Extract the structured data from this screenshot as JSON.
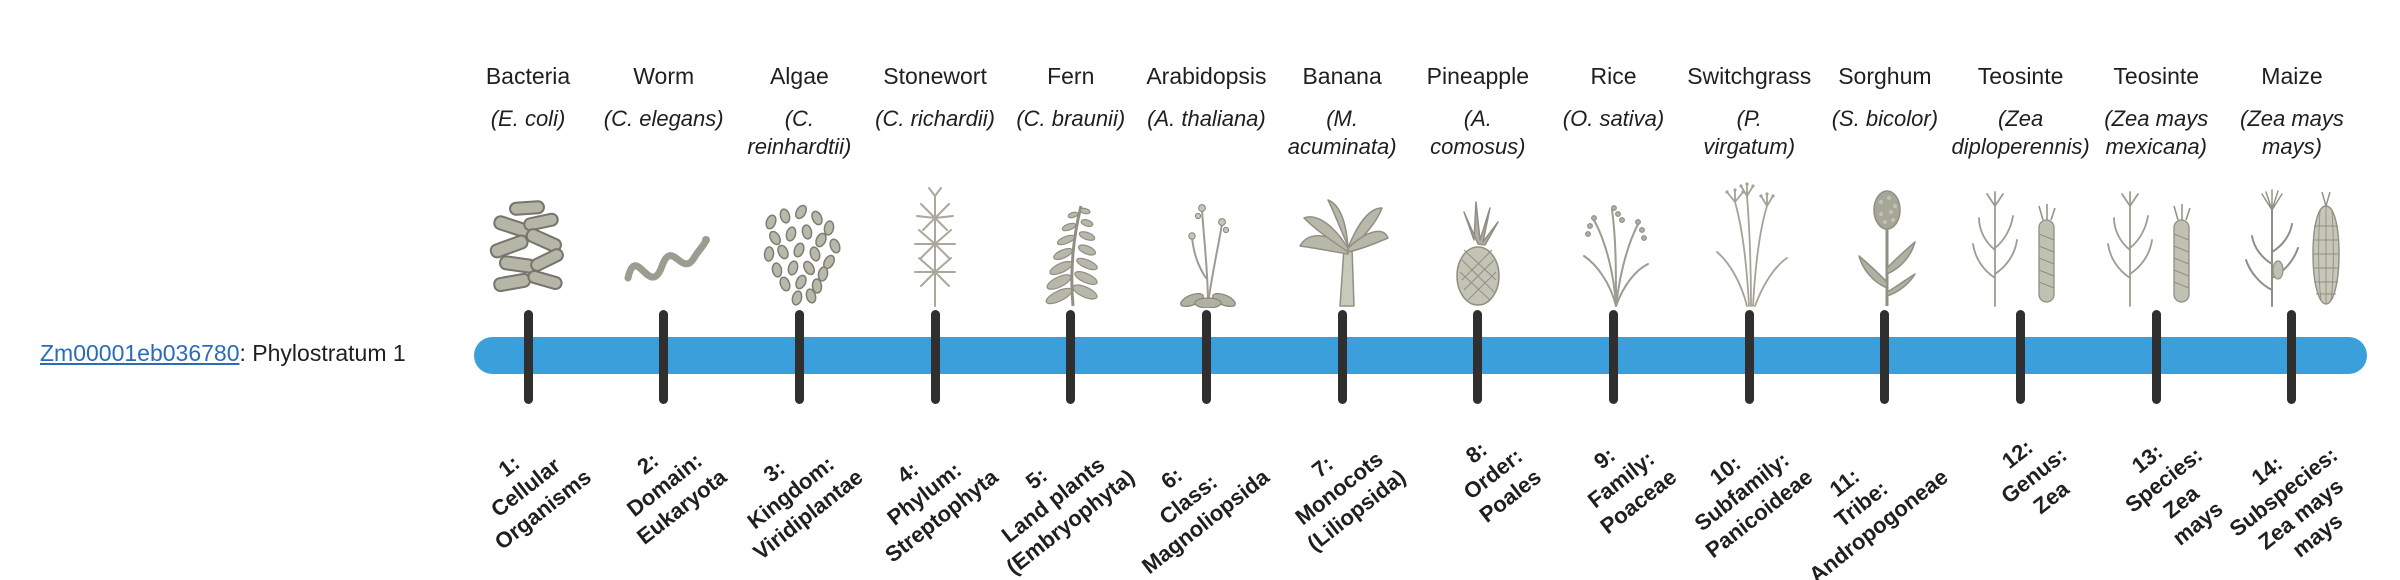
{
  "gene": {
    "id": "Zm00001eb036780",
    "suffix": ": Phylostratum 1"
  },
  "colors": {
    "bar": "#3A9FDB",
    "tick": "#2F2F2F",
    "link": "#2B6CB8",
    "text": "#1F1F1F"
  },
  "columns": [
    {
      "name": "Bacteria",
      "sci_lines": [
        "(E. coli)"
      ],
      "icon": "bacteria-icon",
      "stratum": [
        "1:",
        "Cellular",
        "Organisms"
      ]
    },
    {
      "name": "Worm",
      "sci_lines": [
        "(C. elegans)"
      ],
      "icon": "worm-icon",
      "stratum": [
        "2:",
        "Domain:",
        "Eukaryota"
      ]
    },
    {
      "name": "Algae",
      "sci_lines": [
        "(C.",
        "reinhardtii)"
      ],
      "icon": "algae-icon",
      "stratum": [
        "3:",
        "Kingdom:",
        "Viridiplantae"
      ]
    },
    {
      "name": "Stonewort",
      "sci_lines": [
        "(C. richardii)"
      ],
      "icon": "stonewort-icon",
      "stratum": [
        "4:",
        "Phylum:",
        "Streptophyta"
      ]
    },
    {
      "name": "Fern",
      "sci_lines": [
        "(C. braunii)"
      ],
      "icon": "fern-icon",
      "stratum": [
        "5:",
        "Land plants",
        "(Embryophyta)"
      ]
    },
    {
      "name": "Arabidopsis",
      "sci_lines": [
        "(A. thaliana)"
      ],
      "icon": "arabidopsis-icon",
      "stratum": [
        "6:",
        "Class:",
        "Magnoliopsida"
      ]
    },
    {
      "name": "Banana",
      "sci_lines": [
        "(M.",
        "acuminata)"
      ],
      "icon": "banana-icon",
      "stratum": [
        "7:",
        "Monocots",
        "(Liliopsida)"
      ]
    },
    {
      "name": "Pineapple",
      "sci_lines": [
        "(A.",
        "comosus)"
      ],
      "icon": "pineapple-icon",
      "stratum": [
        "8:",
        "Order:",
        "Poales"
      ]
    },
    {
      "name": "Rice",
      "sci_lines": [
        "(O. sativa)"
      ],
      "icon": "rice-icon",
      "stratum": [
        "9:",
        "Family:",
        "Poaceae"
      ]
    },
    {
      "name": "Switchgrass",
      "sci_lines": [
        "(P.",
        "virgatum)"
      ],
      "icon": "switchgrass-icon",
      "stratum": [
        "10:",
        "Subfamily:",
        "Panicoideae"
      ]
    },
    {
      "name": "Sorghum",
      "sci_lines": [
        "(S. bicolor)"
      ],
      "icon": "sorghum-icon",
      "stratum": [
        "11:",
        "Tribe:",
        "Andropogoneae"
      ]
    },
    {
      "name": "Teosinte",
      "sci_lines": [
        "(Zea",
        "diploperennis)"
      ],
      "icon": "teosinte-icon",
      "stratum": [
        "12:",
        "Genus:",
        "Zea"
      ]
    },
    {
      "name": "Teosinte",
      "sci_lines": [
        "(Zea mays",
        "mexicana)"
      ],
      "icon": "teosinte-icon",
      "stratum": [
        "13:",
        "Species:",
        "Zea",
        "mays"
      ]
    },
    {
      "name": "Maize",
      "sci_lines": [
        "(Zea mays",
        "mays)"
      ],
      "icon": "maize-icon",
      "stratum": [
        "14:",
        "Subspecies:",
        "Zea mays",
        "mays"
      ]
    }
  ]
}
